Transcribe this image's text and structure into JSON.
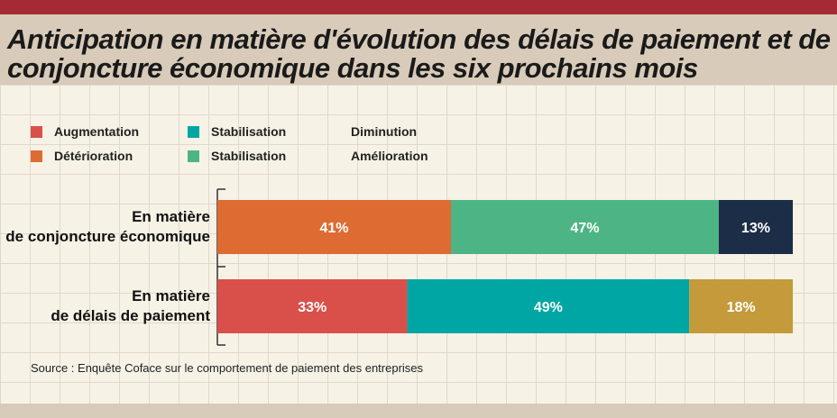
{
  "title_line1": "Anticipation en matière d'évolution des délais de paiement et de la",
  "title_line2": "conjoncture économique dans les six prochains mois",
  "legend": {
    "col1": [
      {
        "label": "Augmentation",
        "color": "#d9504a"
      },
      {
        "label": "Détérioration",
        "color": "#dd6b32"
      }
    ],
    "col2": [
      {
        "label": "Stabilisation",
        "color": "#00a6a4"
      },
      {
        "label": "Stabilisation",
        "color": "#4db585"
      }
    ],
    "col3": [
      {
        "label": "Diminution"
      },
      {
        "label": "Amélioration"
      }
    ]
  },
  "chart_data": {
    "type": "bar",
    "orientation": "horizontal",
    "stacked": true,
    "categories": [
      [
        "En matière",
        "de conjoncture économique"
      ],
      [
        "En matière",
        "de délais de paiement"
      ]
    ],
    "rows": [
      {
        "segments": [
          {
            "value": 41,
            "label": "41%",
            "color": "#dd6b32"
          },
          {
            "value": 47,
            "label": "47%",
            "color": "#4db585"
          },
          {
            "value": 13,
            "label": "13%",
            "color": "#1b2d47"
          }
        ]
      },
      {
        "segments": [
          {
            "value": 33,
            "label": "33%",
            "color": "#d9504a"
          },
          {
            "value": 49,
            "label": "49%",
            "color": "#00a6a4"
          },
          {
            "value": 18,
            "label": "18%",
            "color": "#c49a3a"
          }
        ]
      }
    ]
  },
  "source": "Source : Enquête Coface sur le comportement de paiement des entreprises"
}
